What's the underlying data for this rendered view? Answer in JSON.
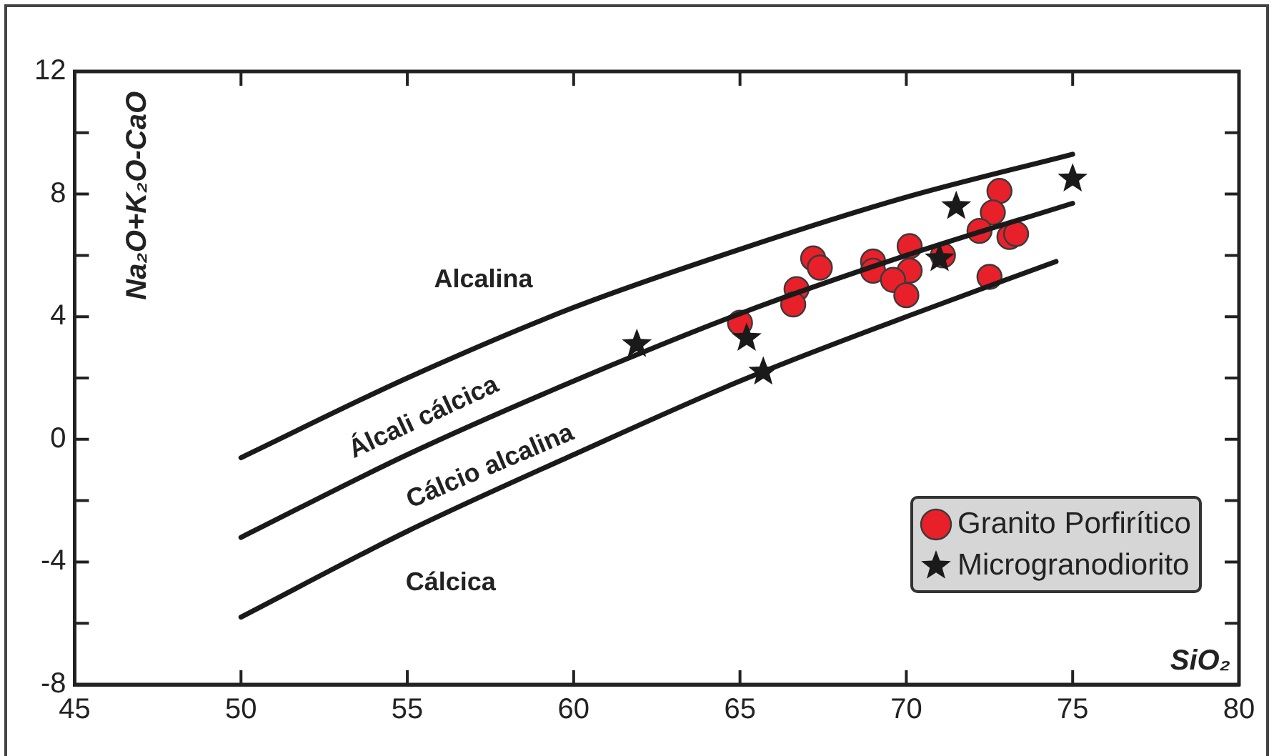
{
  "chart_data": {
    "type": "scatter",
    "xlabel": "SiO₂",
    "ylabel": "Na₂O+K₂O-CaO",
    "xlim": [
      45,
      80
    ],
    "xticks": [
      45,
      50,
      55,
      60,
      65,
      70,
      75,
      80
    ],
    "ylim": [
      -8,
      12
    ],
    "yticks": [
      -8,
      {
        "value": -6,
        "label": null
      },
      -4,
      {
        "value": -2,
        "label": null
      },
      0,
      {
        "value": 2,
        "label": null
      },
      4,
      {
        "value": 6,
        "label": null
      },
      8,
      {
        "value": 10,
        "label": null
      },
      12
    ],
    "legend": "bottom right",
    "series": [
      {
        "type": "line",
        "color": "#1a1a1a",
        "x": [
          50,
          55,
          60,
          65,
          70,
          75
        ],
        "values": [
          -0.6,
          2.0,
          4.3,
          6.2,
          7.9,
          9.3
        ]
      },
      {
        "type": "line",
        "color": "#1a1a1a",
        "x": [
          50,
          55,
          60,
          65,
          70,
          75
        ],
        "values": [
          -3.2,
          -0.5,
          1.9,
          4.1,
          6.0,
          7.7
        ]
      },
      {
        "type": "line",
        "color": "#1a1a1a",
        "x": [
          50,
          55,
          60,
          65,
          70,
          74.5
        ],
        "values": [
          -5.8,
          -3.0,
          -0.5,
          1.9,
          4.0,
          5.8
        ]
      },
      {
        "name": "Granito Porfirítico",
        "marker": "circle",
        "color": "#e8202a",
        "x": [
          65.0,
          66.7,
          66.6,
          67.2,
          67.4,
          69.0,
          69.0,
          70.1,
          70.1,
          69.6,
          70.0,
          71.1,
          72.8,
          72.6,
          72.2,
          73.1,
          73.3,
          72.5
        ],
        "values": [
          3.8,
          4.9,
          4.4,
          5.9,
          5.6,
          5.8,
          5.5,
          6.3,
          5.5,
          5.2,
          4.7,
          6.0,
          8.1,
          7.4,
          6.8,
          6.6,
          6.7,
          5.3
        ]
      },
      {
        "name": "Microgranodiorito",
        "marker": "star",
        "color": "#1a1a1a",
        "x": [
          71.5,
          75.0,
          71.0,
          65.2,
          65.7,
          61.9
        ],
        "values": [
          7.6,
          8.5,
          5.9,
          3.3,
          2.2,
          3.1
        ]
      }
    ],
    "annotations": [
      "Alcalina",
      "Álcali cálcica",
      "Cálcio alcalina",
      "Cálcica"
    ]
  }
}
